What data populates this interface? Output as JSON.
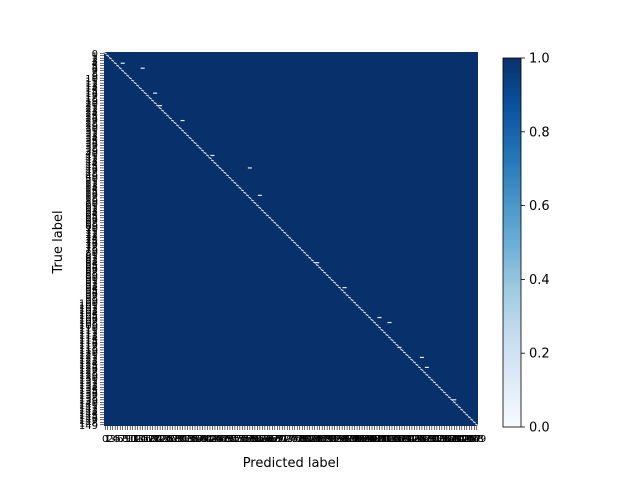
{
  "chart_data": {
    "type": "heatmap",
    "title": "",
    "xlabel": "Predicted label",
    "ylabel": "True label",
    "n_classes": 150,
    "x_tick_labels_legible": [
      "0"
    ],
    "y_tick_labels_legible": [
      "0",
      "149"
    ],
    "diagonal_value": 1.0,
    "off_diagonal_value": 1.0,
    "colorbar": {
      "vmin": 0.0,
      "vmax": 1.0,
      "ticks": [
        "0.0",
        "0.2",
        "0.4",
        "0.6",
        "0.8",
        "1.0"
      ],
      "cmap": "Blues",
      "low_color": "#f7fbff",
      "high_color": "#08306b"
    },
    "grid": false,
    "legend": "colorbar-right"
  }
}
